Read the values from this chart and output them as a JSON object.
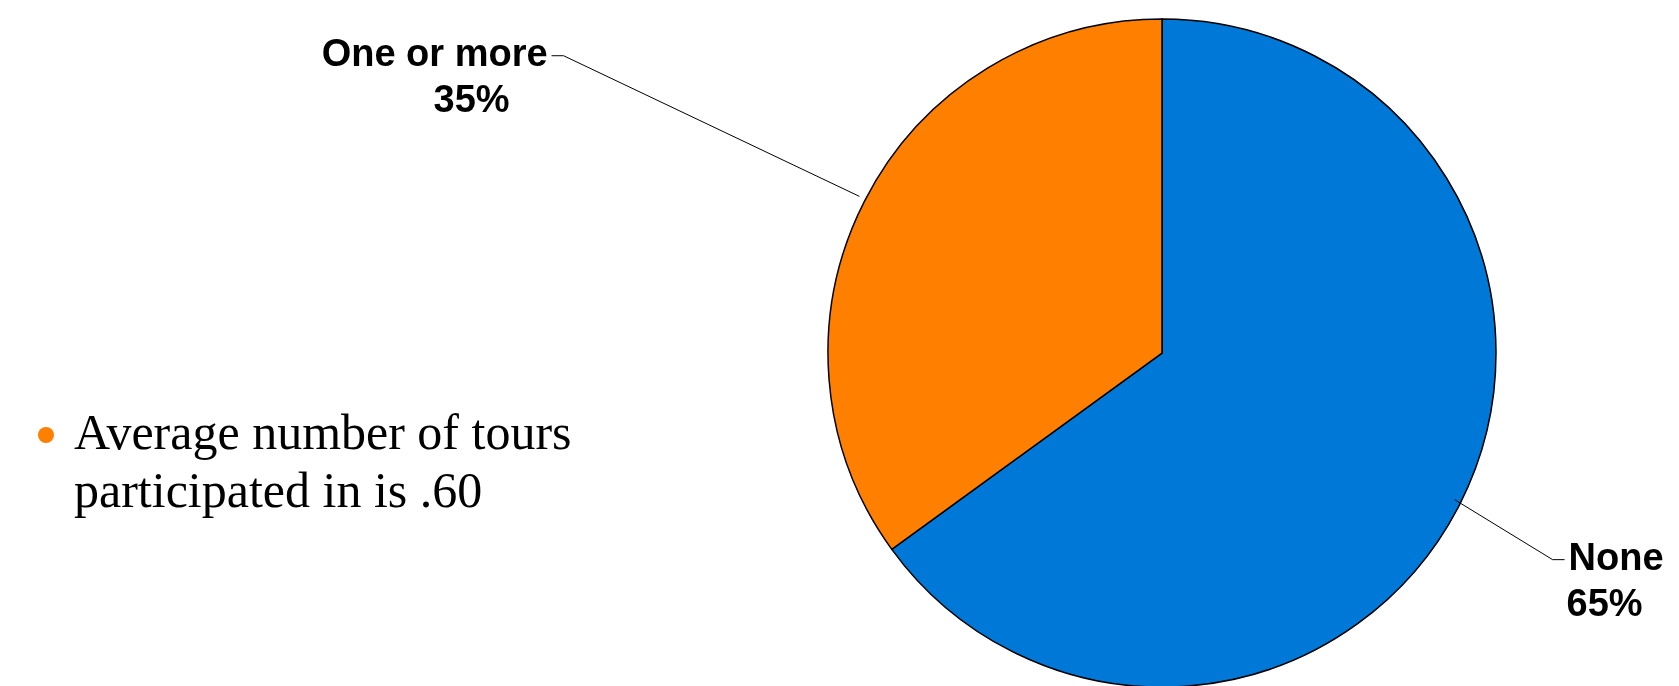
{
  "chart_data": {
    "type": "pie",
    "categories": [
      "None",
      "One or more"
    ],
    "values": [
      65,
      35
    ],
    "value_labels": [
      "65%",
      "35%"
    ],
    "colors": [
      "#0078d7",
      "#ff7f00"
    ],
    "annotations": [
      "Average number of tours participated in is .60"
    ]
  }
}
